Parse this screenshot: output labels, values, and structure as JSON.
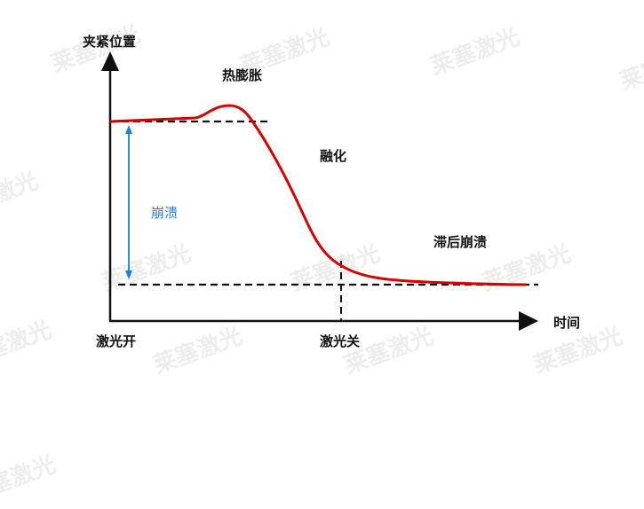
{
  "labels": {
    "y_axis": "夹紧位置",
    "x_axis": "时间",
    "thermal_expansion": "热膨胀",
    "melting": "融化",
    "collapse": "崩溃",
    "delayed_collapse": "滞后崩溃",
    "laser_on": "激光开",
    "laser_off": "激光关"
  },
  "watermark": "莱塞激光",
  "colors": {
    "curve": "#d40000",
    "collapse_arrow": "#1e7fd8",
    "axis": "#111111"
  }
}
